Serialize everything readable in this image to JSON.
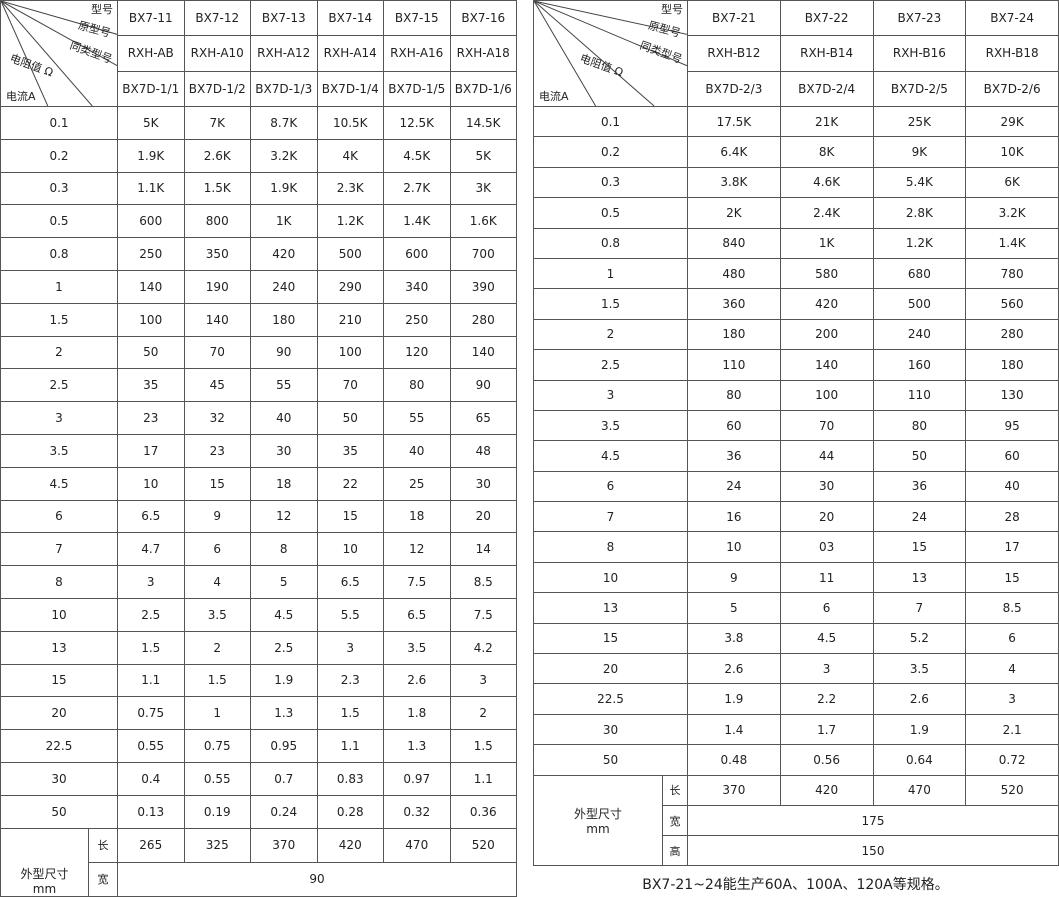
{
  "header_labels": {
    "model": "型号",
    "original_model": "原型号",
    "similar_model": "同类型号",
    "resistance": "电阻值 Ω",
    "current": "电流A"
  },
  "left_table": {
    "models": [
      "BX7-11",
      "BX7-12",
      "BX7-13",
      "BX7-14",
      "BX7-15",
      "BX7-16"
    ],
    "original_models": [
      "RXH-AB",
      "RXH-A10",
      "RXH-A12",
      "RXH-A14",
      "RXH-A16",
      "RXH-A18"
    ],
    "similar_models": [
      "BX7D-1/1",
      "BX7D-1/2",
      "BX7D-1/3",
      "BX7D-1/4",
      "BX7D-1/5",
      "BX7D-1/6"
    ],
    "rows": [
      {
        "current": "0.1",
        "values": [
          "5K",
          "7K",
          "8.7K",
          "10.5K",
          "12.5K",
          "14.5K"
        ]
      },
      {
        "current": "0.2",
        "values": [
          "1.9K",
          "2.6K",
          "3.2K",
          "4K",
          "4.5K",
          "5K"
        ]
      },
      {
        "current": "0.3",
        "values": [
          "1.1K",
          "1.5K",
          "1.9K",
          "2.3K",
          "2.7K",
          "3K"
        ]
      },
      {
        "current": "0.5",
        "values": [
          "600",
          "800",
          "1K",
          "1.2K",
          "1.4K",
          "1.6K"
        ]
      },
      {
        "current": "0.8",
        "values": [
          "250",
          "350",
          "420",
          "500",
          "600",
          "700"
        ]
      },
      {
        "current": "1",
        "values": [
          "140",
          "190",
          "240",
          "290",
          "340",
          "390"
        ]
      },
      {
        "current": "1.5",
        "values": [
          "100",
          "140",
          "180",
          "210",
          "250",
          "280"
        ]
      },
      {
        "current": "2",
        "values": [
          "50",
          "70",
          "90",
          "100",
          "120",
          "140"
        ]
      },
      {
        "current": "2.5",
        "values": [
          "35",
          "45",
          "55",
          "70",
          "80",
          "90"
        ]
      },
      {
        "current": "3",
        "values": [
          "23",
          "32",
          "40",
          "50",
          "55",
          "65"
        ]
      },
      {
        "current": "3.5",
        "values": [
          "17",
          "23",
          "30",
          "35",
          "40",
          "48"
        ]
      },
      {
        "current": "4.5",
        "values": [
          "10",
          "15",
          "18",
          "22",
          "25",
          "30"
        ]
      },
      {
        "current": "6",
        "values": [
          "6.5",
          "9",
          "12",
          "15",
          "18",
          "20"
        ]
      },
      {
        "current": "7",
        "values": [
          "4.7",
          "6",
          "8",
          "10",
          "12",
          "14"
        ]
      },
      {
        "current": "8",
        "values": [
          "3",
          "4",
          "5",
          "6.5",
          "7.5",
          "8.5"
        ]
      },
      {
        "current": "10",
        "values": [
          "2.5",
          "3.5",
          "4.5",
          "5.5",
          "6.5",
          "7.5"
        ]
      },
      {
        "current": "13",
        "values": [
          "1.5",
          "2",
          "2.5",
          "3",
          "3.5",
          "4.2"
        ]
      },
      {
        "current": "15",
        "values": [
          "1.1",
          "1.5",
          "1.9",
          "2.3",
          "2.6",
          "3"
        ]
      },
      {
        "current": "20",
        "values": [
          "0.75",
          "1",
          "1.3",
          "1.5",
          "1.8",
          "2"
        ]
      },
      {
        "current": "22.5",
        "values": [
          "0.55",
          "0.75",
          "0.95",
          "1.1",
          "1.3",
          "1.5"
        ]
      },
      {
        "current": "30",
        "values": [
          "0.4",
          "0.55",
          "0.7",
          "0.83",
          "0.97",
          "1.1"
        ]
      },
      {
        "current": "50",
        "values": [
          "0.13",
          "0.19",
          "0.24",
          "0.28",
          "0.32",
          "0.36"
        ]
      }
    ],
    "dimensions": {
      "label": "外型尺寸",
      "unit": "mm",
      "length_label": "长",
      "length": [
        "265",
        "325",
        "370",
        "420",
        "470",
        "520"
      ],
      "width_label": "宽",
      "width": "90"
    }
  },
  "right_table": {
    "models": [
      "BX7-21",
      "BX7-22",
      "BX7-23",
      "BX7-24"
    ],
    "original_models": [
      "RXH-B12",
      "RXH-B14",
      "RXH-B16",
      "RXH-B18"
    ],
    "similar_models": [
      "BX7D-2/3",
      "BX7D-2/4",
      "BX7D-2/5",
      "BX7D-2/6"
    ],
    "rows": [
      {
        "current": "0.1",
        "values": [
          "17.5K",
          "21K",
          "25K",
          "29K"
        ]
      },
      {
        "current": "0.2",
        "values": [
          "6.4K",
          "8K",
          "9K",
          "10K"
        ]
      },
      {
        "current": "0.3",
        "values": [
          "3.8K",
          "4.6K",
          "5.4K",
          "6K"
        ]
      },
      {
        "current": "0.5",
        "values": [
          "2K",
          "2.4K",
          "2.8K",
          "3.2K"
        ]
      },
      {
        "current": "0.8",
        "values": [
          "840",
          "1K",
          "1.2K",
          "1.4K"
        ]
      },
      {
        "current": "1",
        "values": [
          "480",
          "580",
          "680",
          "780"
        ]
      },
      {
        "current": "1.5",
        "values": [
          "360",
          "420",
          "500",
          "560"
        ]
      },
      {
        "current": "2",
        "values": [
          "180",
          "200",
          "240",
          "280"
        ]
      },
      {
        "current": "2.5",
        "values": [
          "110",
          "140",
          "160",
          "180"
        ]
      },
      {
        "current": "3",
        "values": [
          "80",
          "100",
          "110",
          "130"
        ]
      },
      {
        "current": "3.5",
        "values": [
          "60",
          "70",
          "80",
          "95"
        ]
      },
      {
        "current": "4.5",
        "values": [
          "36",
          "44",
          "50",
          "60"
        ]
      },
      {
        "current": "6",
        "values": [
          "24",
          "30",
          "36",
          "40"
        ]
      },
      {
        "current": "7",
        "values": [
          "16",
          "20",
          "24",
          "28"
        ]
      },
      {
        "current": "8",
        "values": [
          "10",
          "03",
          "15",
          "17"
        ]
      },
      {
        "current": "10",
        "values": [
          "9",
          "11",
          "13",
          "15"
        ]
      },
      {
        "current": "13",
        "values": [
          "5",
          "6",
          "7",
          "8.5"
        ]
      },
      {
        "current": "15",
        "values": [
          "3.8",
          "4.5",
          "5.2",
          "6"
        ]
      },
      {
        "current": "20",
        "values": [
          "2.6",
          "3",
          "3.5",
          "4"
        ]
      },
      {
        "current": "22.5",
        "values": [
          "1.9",
          "2.2",
          "2.6",
          "3"
        ]
      },
      {
        "current": "30",
        "values": [
          "1.4",
          "1.7",
          "1.9",
          "2.1"
        ]
      },
      {
        "current": "50",
        "values": [
          "0.48",
          "0.56",
          "0.64",
          "0.72"
        ]
      }
    ],
    "dimensions": {
      "label": "外型尺寸",
      "unit": "mm",
      "length_label": "长",
      "length": [
        "370",
        "420",
        "470",
        "520"
      ],
      "width_label": "宽",
      "width": "175",
      "height_label": "高",
      "height": "150"
    }
  },
  "caption": "BX7-21~24能生产60A、100A、120A等规格。"
}
